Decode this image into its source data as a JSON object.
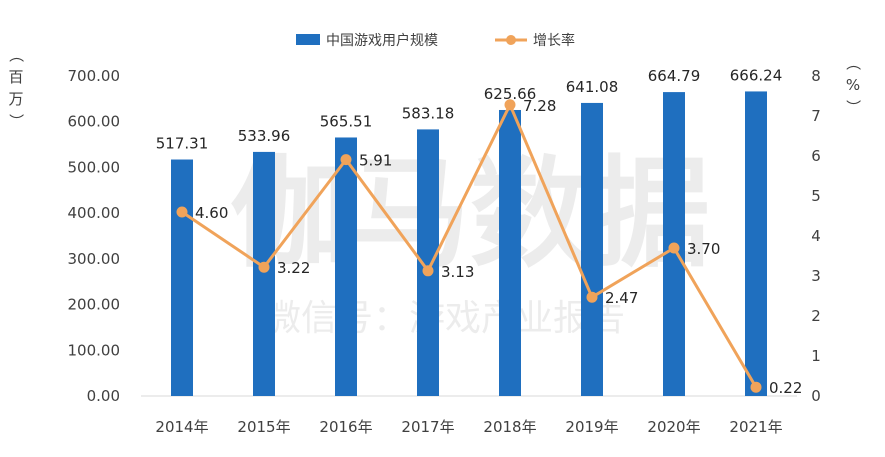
{
  "chart_data": {
    "type": "bar+line",
    "categories": [
      "2014年",
      "2015年",
      "2016年",
      "2017年",
      "2018年",
      "2019年",
      "2020年",
      "2021年"
    ],
    "series": [
      {
        "name": "中国游戏用户规模",
        "type": "bar",
        "axis": "left",
        "color": "#1F6FBF",
        "values": [
          517.31,
          533.96,
          565.51,
          583.18,
          625.66,
          641.08,
          664.79,
          666.24
        ],
        "labels": [
          "517.31",
          "533.96",
          "565.51",
          "583.18",
          "625.66",
          "641.08",
          "664.79",
          "666.24"
        ]
      },
      {
        "name": "增长率",
        "type": "line",
        "axis": "right",
        "color": "#F0A35A",
        "values": [
          4.6,
          3.22,
          5.91,
          3.13,
          7.28,
          2.47,
          3.7,
          0.22
        ],
        "labels": [
          "4.60",
          "3.22",
          "5.91",
          "3.13",
          "7.28",
          "2.47",
          "3.70",
          "0.22"
        ]
      }
    ],
    "y_left": {
      "label": "（百万）",
      "range": [
        0,
        700
      ],
      "ticks": [
        "0.00",
        "100.00",
        "200.00",
        "300.00",
        "400.00",
        "500.00",
        "600.00",
        "700.00"
      ]
    },
    "y_right": {
      "label": "（%）",
      "range": [
        0,
        8
      ],
      "ticks": [
        "0",
        "1",
        "2",
        "3",
        "4",
        "5",
        "6",
        "7",
        "8"
      ]
    },
    "legend": "top-center",
    "grid": false
  },
  "watermark": {
    "main": "伽马数据",
    "sub": "微信号：游戏产业报告"
  }
}
